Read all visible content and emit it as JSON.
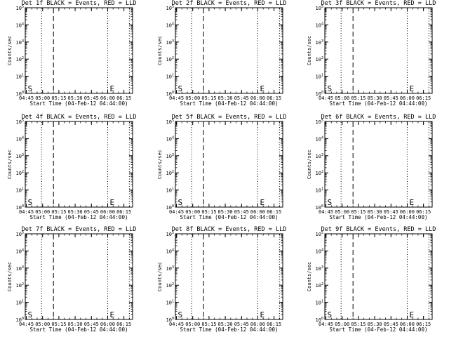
{
  "chart_data": [
    {
      "type": "line",
      "title": "Det 1f BLACK = Events, RED = LLD",
      "xlabel": "Start Time (04-Feb-12 04:44:00)",
      "ylabel": "Counts/sec",
      "y_scale": "log",
      "ylim": [
        "1e0",
        "1e5"
      ],
      "x_ticks": [
        "04:45",
        "05:00",
        "05:15",
        "05:30",
        "05:45",
        "06:00",
        "06:15"
      ],
      "y_ticks": [
        "10^0",
        "10^1",
        "10^2",
        "10^3",
        "10^4",
        "10^5"
      ],
      "markers": [
        {
          "label": "S",
          "x": "04:45"
        },
        {
          "label": "E",
          "x": "06:02"
        }
      ],
      "line_colors": {
        "events": "#000000",
        "lld": "#ff0000"
      }
    },
    {
      "type": "line",
      "title": "Det 2f BLACK = Events, RED = LLD",
      "xlabel": "Start Time (04-Feb-12 04:44:00)",
      "ylabel": "Counts/sec",
      "y_scale": "log",
      "ylim": [
        "1e0",
        "1e5"
      ],
      "x_ticks": [
        "04:45",
        "05:00",
        "05:15",
        "05:30",
        "05:45",
        "06:00",
        "06:15"
      ],
      "y_ticks": [
        "10^0",
        "10^1",
        "10^2",
        "10^3",
        "10^4",
        "10^5"
      ],
      "markers": [
        {
          "label": "S",
          "x": "04:45"
        },
        {
          "label": "E",
          "x": "06:02"
        }
      ],
      "line_colors": {
        "events": "#000000",
        "lld": "#ff0000"
      }
    },
    {
      "type": "line",
      "title": "Det 3f BLACK = Events, RED = LLD",
      "xlabel": "Start Time (04-Feb-12 04:44:00)",
      "ylabel": "Counts/sec",
      "y_scale": "log",
      "ylim": [
        "1e0",
        "1e5"
      ],
      "x_ticks": [
        "04:45",
        "05:00",
        "05:15",
        "05:30",
        "05:45",
        "06:00",
        "06:15"
      ],
      "y_ticks": [
        "10^0",
        "10^1",
        "10^2",
        "10^3",
        "10^4",
        "10^5"
      ],
      "markers": [
        {
          "label": "S",
          "x": "04:45"
        },
        {
          "label": "E",
          "x": "06:02"
        }
      ],
      "line_colors": {
        "events": "#000000",
        "lld": "#ff0000"
      }
    },
    {
      "type": "line",
      "title": "Det 4f BLACK = Events, RED = LLD",
      "xlabel": "Start Time (04-Feb-12 04:44:00)",
      "ylabel": "Counts/sec",
      "y_scale": "log",
      "ylim": [
        "1e0",
        "1e5"
      ],
      "x_ticks": [
        "04:45",
        "05:00",
        "05:15",
        "05:30",
        "05:45",
        "06:00",
        "06:15"
      ],
      "y_ticks": [
        "10^0",
        "10^1",
        "10^2",
        "10^3",
        "10^4",
        "10^5"
      ],
      "markers": [
        {
          "label": "S",
          "x": "04:45"
        },
        {
          "label": "E",
          "x": "06:02"
        }
      ],
      "line_colors": {
        "events": "#000000",
        "lld": "#ff0000"
      }
    },
    {
      "type": "line",
      "title": "Det 5f BLACK = Events, RED = LLD",
      "xlabel": "Start Time (04-Feb-12 04:44:00)",
      "ylabel": "Counts/sec",
      "y_scale": "log",
      "ylim": [
        "1e0",
        "1e5"
      ],
      "x_ticks": [
        "04:45",
        "05:00",
        "05:15",
        "05:30",
        "05:45",
        "06:00",
        "06:15"
      ],
      "y_ticks": [
        "10^0",
        "10^1",
        "10^2",
        "10^3",
        "10^4",
        "10^5"
      ],
      "markers": [
        {
          "label": "S",
          "x": "04:45"
        },
        {
          "label": "E",
          "x": "06:02"
        }
      ],
      "line_colors": {
        "events": "#000000",
        "lld": "#ff0000"
      }
    },
    {
      "type": "line",
      "title": "Det 6f BLACK = Events, RED = LLD",
      "xlabel": "Start Time (04-Feb-12 04:44:00)",
      "ylabel": "Counts/sec",
      "y_scale": "log",
      "ylim": [
        "1e0",
        "1e5"
      ],
      "x_ticks": [
        "04:45",
        "05:00",
        "05:15",
        "05:30",
        "05:45",
        "06:00",
        "06:15"
      ],
      "y_ticks": [
        "10^0",
        "10^1",
        "10^2",
        "10^3",
        "10^4",
        "10^5"
      ],
      "markers": [
        {
          "label": "S",
          "x": "04:45"
        },
        {
          "label": "E",
          "x": "06:02"
        }
      ],
      "line_colors": {
        "events": "#000000",
        "lld": "#ff0000"
      }
    },
    {
      "type": "line",
      "title": "Det 7f BLACK = Events, RED = LLD",
      "xlabel": "Start Time (04-Feb-12 04:44:00)",
      "ylabel": "Counts/sec",
      "y_scale": "log",
      "ylim": [
        "1e0",
        "1e5"
      ],
      "x_ticks": [
        "04:45",
        "05:00",
        "05:15",
        "05:30",
        "05:45",
        "06:00",
        "06:15"
      ],
      "y_ticks": [
        "10^0",
        "10^1",
        "10^2",
        "10^3",
        "10^4",
        "10^5"
      ],
      "markers": [
        {
          "label": "S",
          "x": "04:45"
        },
        {
          "label": "E",
          "x": "06:02"
        }
      ],
      "line_colors": {
        "events": "#000000",
        "lld": "#ff0000"
      }
    },
    {
      "type": "line",
      "title": "Det 8f BLACK = Events, RED = LLD",
      "xlabel": "Start Time (04-Feb-12 04:44:00)",
      "ylabel": "Counts/sec",
      "y_scale": "log",
      "ylim": [
        "1e0",
        "1e5"
      ],
      "x_ticks": [
        "04:45",
        "05:00",
        "05:15",
        "05:30",
        "05:45",
        "06:00",
        "06:15"
      ],
      "y_ticks": [
        "10^0",
        "10^1",
        "10^2",
        "10^3",
        "10^4",
        "10^5"
      ],
      "markers": [
        {
          "label": "S",
          "x": "04:45"
        },
        {
          "label": "E",
          "x": "06:02"
        }
      ],
      "line_colors": {
        "events": "#000000",
        "lld": "#ff0000"
      }
    },
    {
      "type": "line",
      "title": "Det 9f BLACK = Events, RED = LLD",
      "xlabel": "Start Time (04-Feb-12 04:44:00)",
      "ylabel": "Counts/sec",
      "y_scale": "log",
      "ylim": [
        "1e0",
        "1e5"
      ],
      "x_ticks": [
        "04:45",
        "05:00",
        "05:15",
        "05:30",
        "05:45",
        "06:00",
        "06:15"
      ],
      "y_ticks": [
        "10^0",
        "10^1",
        "10^2",
        "10^3",
        "10^4",
        "10^5"
      ],
      "markers": [
        {
          "label": "S",
          "x": "04:45"
        },
        {
          "label": "E",
          "x": "06:02"
        }
      ],
      "line_colors": {
        "events": "#000000",
        "lld": "#ff0000"
      }
    }
  ],
  "reference_lines": [
    {
      "style": "dotted",
      "x": "04:44"
    },
    {
      "style": "dotted",
      "x": "04:59"
    },
    {
      "style": "dashed",
      "x": "05:10"
    },
    {
      "style": "dotted",
      "x": "06:00"
    },
    {
      "style": "dotted",
      "x": "06:20"
    }
  ]
}
